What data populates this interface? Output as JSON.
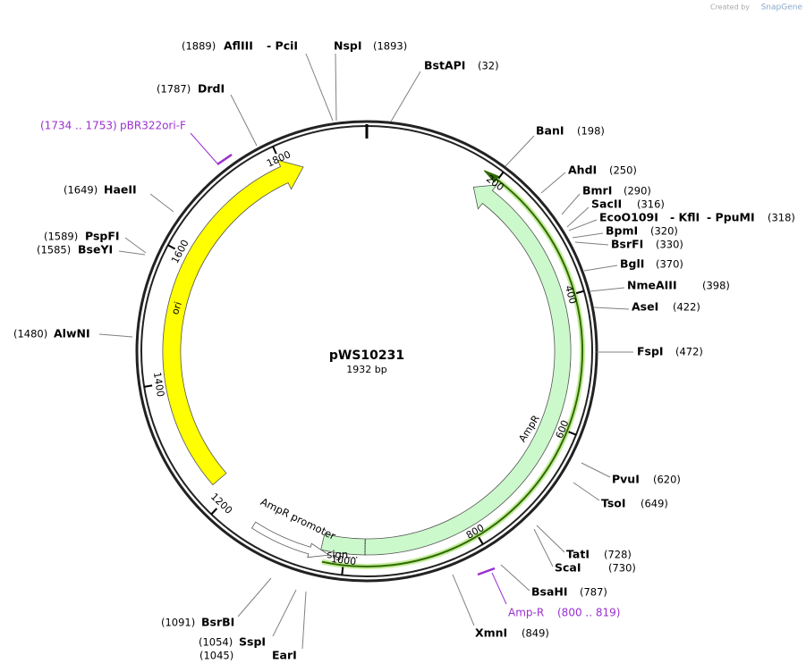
{
  "branding": {
    "created_by": "Created by",
    "product": "SnapGene"
  },
  "plasmid": {
    "name": "pWS10231",
    "length": "1932 bp"
  },
  "ruler": [
    200,
    400,
    600,
    800,
    1000,
    1200,
    1400,
    1600,
    1800
  ],
  "features": {
    "ori": "ori",
    "ampr": "AmpR",
    "signal": "sign…",
    "promoter": "AmpR promoter"
  },
  "primers": [
    {
      "name": "pBR322ori-F",
      "range": "(1734 .. 1753)"
    },
    {
      "name": "Amp-R",
      "range": "(800 .. 819)"
    }
  ],
  "sites": [
    {
      "names": [
        "AflIII",
        "- PciI"
      ],
      "position": "(1889)"
    },
    {
      "names": [
        "NspI"
      ],
      "position": "(1893)"
    },
    {
      "names": [
        "BstAPI"
      ],
      "position": "(32)"
    },
    {
      "names": [
        "DrdI"
      ],
      "position": "(1787)"
    },
    {
      "names": [
        "BanI"
      ],
      "position": "(198)"
    },
    {
      "names": [
        "AhdI"
      ],
      "position": "(250)"
    },
    {
      "names": [
        "BmrI"
      ],
      "position": "(290)"
    },
    {
      "names": [
        "SacII"
      ],
      "position": "(316)"
    },
    {
      "names": [
        "EcoO109I",
        "- KflI",
        "- PpuMI"
      ],
      "position": "(318)"
    },
    {
      "names": [
        "BpmI"
      ],
      "position": "(320)"
    },
    {
      "names": [
        "BsrFI"
      ],
      "position": "(330)"
    },
    {
      "names": [
        "BglI"
      ],
      "position": "(370)"
    },
    {
      "names": [
        "NmeAIII"
      ],
      "position": "(398)"
    },
    {
      "names": [
        "AseI"
      ],
      "position": "(422)"
    },
    {
      "names": [
        "FspI"
      ],
      "position": "(472)"
    },
    {
      "names": [
        "PvuI"
      ],
      "position": "(620)"
    },
    {
      "names": [
        "TsoI"
      ],
      "position": "(649)"
    },
    {
      "names": [
        "TatI"
      ],
      "position": "(728)"
    },
    {
      "names": [
        "ScaI"
      ],
      "position": "(730)"
    },
    {
      "names": [
        "BsaHI"
      ],
      "position": "(787)"
    },
    {
      "names": [
        "XmnI"
      ],
      "position": "(849)"
    },
    {
      "names": [
        "BsrBI"
      ],
      "position": "(1091)"
    },
    {
      "names": [
        "SspI"
      ],
      "position": "(1054)"
    },
    {
      "names": [
        "EarI"
      ],
      "position": "(1045)"
    },
    {
      "names": [
        "HaeII"
      ],
      "position": "(1649)"
    },
    {
      "names": [
        "PspFI"
      ],
      "position": "(1589)"
    },
    {
      "names": [
        "BseYI"
      ],
      "position": "(1585)"
    },
    {
      "names": [
        "AlwNI"
      ],
      "position": "(1480)"
    }
  ]
}
